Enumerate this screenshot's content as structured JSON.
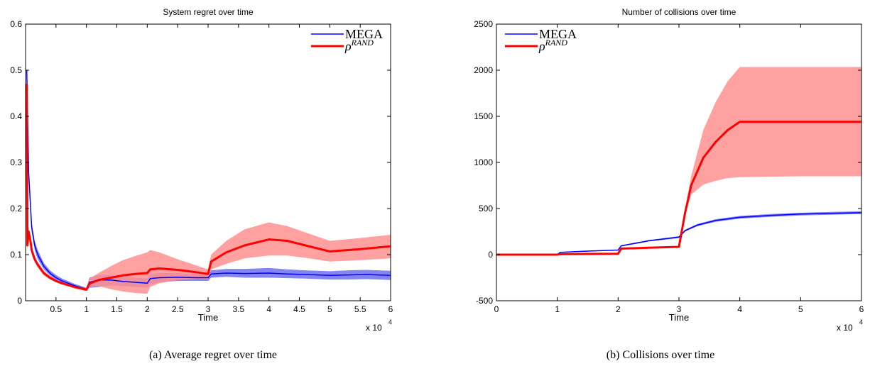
{
  "figure": {
    "captions": [
      "(a) Average regret over time",
      "(b) Collisions over time"
    ]
  },
  "chart_data": [
    {
      "type": "line",
      "title": "System regret over time",
      "xlabel": "Time",
      "ylabel": "",
      "x_multiplier_label": "x 10",
      "x_multiplier_exponent": "4",
      "xlim": [
        0,
        6
      ],
      "ylim": [
        0,
        0.6
      ],
      "xticks": [
        0.5,
        1,
        1.5,
        2,
        2.5,
        3,
        3.5,
        4,
        4.5,
        5,
        5.5,
        6
      ],
      "xtick_labels": [
        "0.5",
        "1",
        "1.5",
        "2",
        "2.5",
        "3",
        "3.5",
        "4",
        "4.5",
        "5",
        "5.5",
        "6"
      ],
      "yticks": [
        0,
        0.1,
        0.2,
        0.3,
        0.4,
        0.5,
        0.6
      ],
      "ytick_labels": [
        "0",
        "0.1",
        "0.2",
        "0.3",
        "0.4",
        "0.5",
        "0.6"
      ],
      "grid": false,
      "legend_position": "top-right",
      "series": [
        {
          "name": "MEGA",
          "color": "#0000ff",
          "band_color": "#7070f0",
          "x": [
            0.02,
            0.05,
            0.1,
            0.15,
            0.2,
            0.3,
            0.4,
            0.5,
            0.6,
            0.8,
            1.0,
            1.05,
            1.2,
            1.4,
            1.6,
            1.8,
            2.0,
            2.05,
            2.2,
            2.5,
            2.8,
            3.0,
            3.05,
            3.3,
            3.6,
            4.0,
            4.3,
            4.6,
            5.0,
            5.3,
            5.6,
            6.0
          ],
          "y": [
            0.5,
            0.28,
            0.16,
            0.12,
            0.1,
            0.075,
            0.06,
            0.05,
            0.043,
            0.033,
            0.025,
            0.04,
            0.045,
            0.045,
            0.042,
            0.04,
            0.038,
            0.048,
            0.05,
            0.051,
            0.05,
            0.05,
            0.058,
            0.06,
            0.059,
            0.06,
            0.058,
            0.057,
            0.055,
            0.056,
            0.057,
            0.055
          ],
          "lower": [
            0.5,
            0.27,
            0.15,
            0.11,
            0.09,
            0.068,
            0.055,
            0.045,
            0.039,
            0.03,
            0.022,
            0.028,
            0.03,
            0.033,
            0.032,
            0.03,
            0.028,
            0.035,
            0.04,
            0.043,
            0.043,
            0.043,
            0.05,
            0.052,
            0.05,
            0.05,
            0.049,
            0.048,
            0.046,
            0.046,
            0.047,
            0.045
          ],
          "upper": [
            0.5,
            0.29,
            0.17,
            0.13,
            0.11,
            0.082,
            0.066,
            0.056,
            0.048,
            0.037,
            0.028,
            0.05,
            0.056,
            0.056,
            0.052,
            0.05,
            0.048,
            0.058,
            0.06,
            0.06,
            0.058,
            0.058,
            0.066,
            0.069,
            0.069,
            0.071,
            0.068,
            0.066,
            0.064,
            0.066,
            0.067,
            0.065
          ]
        },
        {
          "name": "ρ^RAND",
          "color": "#ff0000",
          "band_color": "#ff9090",
          "x": [
            0.02,
            0.03,
            0.05,
            0.08,
            0.1,
            0.15,
            0.2,
            0.3,
            0.4,
            0.5,
            0.6,
            0.8,
            1.0,
            1.05,
            1.2,
            1.4,
            1.6,
            1.8,
            2.0,
            2.05,
            2.2,
            2.5,
            2.8,
            3.0,
            3.05,
            3.3,
            3.6,
            4.0,
            4.3,
            4.6,
            5.0,
            5.5,
            6.0
          ],
          "y": [
            0.47,
            0.12,
            0.15,
            0.13,
            0.11,
            0.09,
            0.078,
            0.06,
            0.05,
            0.043,
            0.038,
            0.03,
            0.024,
            0.037,
            0.045,
            0.05,
            0.055,
            0.058,
            0.06,
            0.068,
            0.07,
            0.067,
            0.062,
            0.058,
            0.085,
            0.105,
            0.12,
            0.133,
            0.13,
            0.12,
            0.107,
            0.112,
            0.118
          ],
          "lower": [
            0.47,
            0.11,
            0.14,
            0.12,
            0.1,
            0.084,
            0.072,
            0.055,
            0.046,
            0.04,
            0.035,
            0.027,
            0.021,
            0.03,
            0.032,
            0.025,
            0.02,
            0.017,
            0.015,
            0.03,
            0.038,
            0.045,
            0.047,
            0.047,
            0.068,
            0.08,
            0.092,
            0.098,
            0.098,
            0.093,
            0.085,
            0.088,
            0.092
          ],
          "upper": [
            0.47,
            0.13,
            0.16,
            0.14,
            0.12,
            0.096,
            0.084,
            0.065,
            0.054,
            0.046,
            0.041,
            0.033,
            0.027,
            0.048,
            0.06,
            0.075,
            0.088,
            0.097,
            0.105,
            0.11,
            0.105,
            0.09,
            0.077,
            0.068,
            0.1,
            0.13,
            0.155,
            0.17,
            0.162,
            0.148,
            0.13,
            0.136,
            0.143
          ]
        }
      ]
    },
    {
      "type": "line",
      "title": "Number of collisions over time",
      "xlabel": "Time",
      "ylabel": "",
      "x_multiplier_label": "x 10",
      "x_multiplier_exponent": "4",
      "xlim": [
        0,
        6
      ],
      "ylim": [
        -500,
        2500
      ],
      "xticks": [
        0,
        1,
        2,
        3,
        4,
        5,
        6
      ],
      "xtick_labels": [
        "0",
        "1",
        "2",
        "3",
        "4",
        "5",
        "6"
      ],
      "yticks": [
        -500,
        0,
        500,
        1000,
        1500,
        2000,
        2500
      ],
      "ytick_labels": [
        "-500",
        "0",
        "500",
        "1000",
        "1500",
        "2000",
        "2500"
      ],
      "grid": false,
      "legend_position": "top-left",
      "series": [
        {
          "name": "MEGA",
          "color": "#0000ff",
          "band_color": "#7070f0",
          "x": [
            0,
            0.5,
            1.0,
            1.05,
            1.5,
            2.0,
            2.05,
            2.5,
            3.0,
            3.1,
            3.3,
            3.6,
            4.0,
            4.5,
            5.0,
            5.5,
            6.0
          ],
          "y": [
            0,
            0,
            0,
            25,
            38,
            50,
            95,
            150,
            190,
            260,
            320,
            370,
            405,
            425,
            440,
            448,
            455
          ],
          "lower": [
            0,
            0,
            0,
            22,
            34,
            46,
            88,
            142,
            180,
            250,
            308,
            356,
            390,
            410,
            425,
            433,
            440
          ],
          "upper": [
            0,
            0,
            0,
            28,
            42,
            54,
            102,
            158,
            200,
            270,
            332,
            384,
            420,
            440,
            455,
            463,
            470
          ]
        },
        {
          "name": "ρ^RAND",
          "color": "#ff0000",
          "band_color": "#ff9090",
          "x": [
            0,
            0.5,
            1.0,
            1.05,
            1.5,
            2.0,
            2.05,
            2.5,
            3.0,
            3.1,
            3.2,
            3.4,
            3.6,
            3.8,
            4.0,
            4.5,
            5.0,
            5.5,
            6.0
          ],
          "y": [
            0,
            0,
            0,
            5,
            8,
            10,
            65,
            75,
            85,
            450,
            750,
            1050,
            1220,
            1350,
            1440,
            1440,
            1440,
            1440,
            1440
          ],
          "lower": [
            0,
            0,
            0,
            3,
            5,
            7,
            58,
            68,
            78,
            420,
            650,
            760,
            800,
            830,
            840,
            845,
            850,
            850,
            850
          ],
          "upper": [
            0,
            0,
            0,
            7,
            11,
            13,
            72,
            82,
            92,
            480,
            850,
            1350,
            1650,
            1880,
            2035,
            2035,
            2035,
            2035,
            2035
          ]
        }
      ]
    }
  ]
}
